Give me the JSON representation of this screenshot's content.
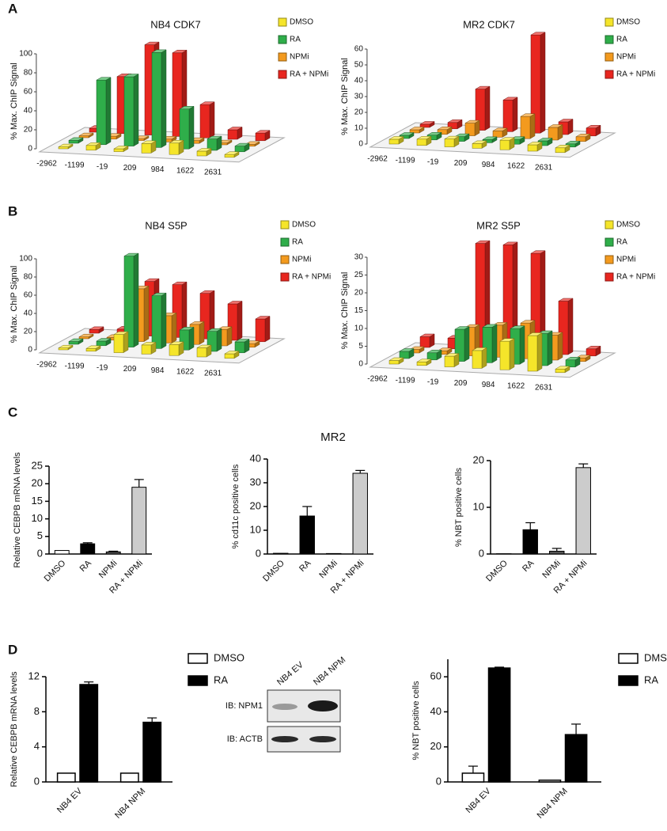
{
  "panels": [
    "A",
    "B",
    "C",
    "D"
  ],
  "group_title": "MR2",
  "blot": {
    "lanes": [
      "NB4 EV",
      "NB4 NPM"
    ],
    "rows": [
      "IB: NPM1",
      "IB: ACTB"
    ]
  },
  "chart_data": [
    {
      "type": "bar3d",
      "title": "NB4 CDK7",
      "y_label": "% Max. ChIP Signal",
      "categories": [
        "-2962",
        "-1199",
        "-19",
        "209",
        "984",
        "1622",
        "2631"
      ],
      "series": [
        {
          "name": "DMSO",
          "color": "#f5e52a",
          "values": [
            2,
            5,
            3,
            10,
            12,
            5,
            3
          ]
        },
        {
          "name": "RA",
          "color": "#2fae4a",
          "values": [
            3,
            68,
            73,
            100,
            42,
            12,
            6
          ]
        },
        {
          "name": "NPMi",
          "color": "#f39a1e",
          "values": [
            2,
            3,
            2,
            3,
            3,
            2,
            2
          ]
        },
        {
          "name": "RA + NPMi",
          "color": "#e8261f",
          "values": [
            4,
            60,
            95,
            88,
            35,
            10,
            8
          ]
        }
      ],
      "ylim": [
        0,
        100
      ],
      "yticks": [
        0,
        20,
        40,
        60,
        80,
        100
      ]
    },
    {
      "type": "bar3d",
      "title": "MR2 CDK7",
      "y_label": "% Max. ChIP Signal",
      "categories": [
        "-2962",
        "-1199",
        "-19",
        "209",
        "984",
        "1622",
        "2631"
      ],
      "series": [
        {
          "name": "DMSO",
          "color": "#f5e52a",
          "values": [
            3,
            4,
            5,
            3,
            6,
            4,
            3
          ]
        },
        {
          "name": "RA",
          "color": "#2fae4a",
          "values": [
            2,
            3,
            3,
            2,
            3,
            3,
            2
          ]
        },
        {
          "name": "NPMi",
          "color": "#f39a1e",
          "values": [
            2,
            3,
            8,
            4,
            14,
            8,
            3
          ]
        },
        {
          "name": "RA + NPMi",
          "color": "#e8261f",
          "values": [
            2,
            4,
            26,
            20,
            62,
            8,
            5
          ]
        }
      ],
      "ylim": [
        0,
        60
      ],
      "yticks": [
        0,
        10,
        20,
        30,
        40,
        50,
        60
      ]
    },
    {
      "type": "bar3d",
      "title": "NB4 S5P",
      "y_label": "% Max. ChIP Signal",
      "categories": [
        "-2962",
        "-1199",
        "-19",
        "209",
        "984",
        "1622",
        "2631"
      ],
      "series": [
        {
          "name": "DMSO",
          "color": "#f5e52a",
          "values": [
            2,
            3,
            20,
            10,
            12,
            10,
            5
          ]
        },
        {
          "name": "RA",
          "color": "#2fae4a",
          "values": [
            3,
            5,
            100,
            58,
            22,
            22,
            12
          ]
        },
        {
          "name": "NPMi",
          "color": "#f39a1e",
          "values": [
            2,
            3,
            58,
            30,
            22,
            18,
            4
          ]
        },
        {
          "name": "RA + NPMi",
          "color": "#e8261f",
          "values": [
            4,
            6,
            60,
            58,
            50,
            40,
            25
          ]
        }
      ],
      "ylim": [
        0,
        100
      ],
      "yticks": [
        0,
        20,
        40,
        60,
        80,
        100
      ]
    },
    {
      "type": "bar3d",
      "title": "MR2 S5P",
      "y_label": "% Max. ChIP Signal",
      "categories": [
        "-2962",
        "-1199",
        "-19",
        "209",
        "984",
        "1622",
        "2631"
      ],
      "series": [
        {
          "name": "DMSO",
          "color": "#f5e52a",
          "values": [
            1,
            1,
            3,
            5,
            8,
            10,
            1
          ]
        },
        {
          "name": "RA",
          "color": "#2fae4a",
          "values": [
            2,
            2,
            9,
            10,
            10,
            9,
            2
          ]
        },
        {
          "name": "NPMi",
          "color": "#f39a1e",
          "values": [
            1,
            1,
            8,
            9,
            10,
            7,
            1
          ]
        },
        {
          "name": "RA + NPMi",
          "color": "#e8261f",
          "values": [
            3,
            3,
            30,
            30,
            28,
            15,
            2
          ]
        }
      ],
      "ylim": [
        0,
        30
      ],
      "yticks": [
        0,
        5,
        10,
        15,
        20,
        25,
        30
      ]
    },
    {
      "type": "bar",
      "y_label": "Relative CEBPB mRNA levels",
      "categories": [
        "DMSO",
        "RA",
        "NPMi",
        "RA + NPMi"
      ],
      "values": [
        1,
        2.9,
        0.6,
        19
      ],
      "errors": [
        0,
        0.3,
        0.2,
        2.2
      ],
      "colors": [
        "#ffffff",
        "#000000",
        "#555555",
        "#cccccc"
      ],
      "ylim": [
        0,
        25
      ],
      "yticks": [
        0,
        5,
        10,
        15,
        20,
        25
      ]
    },
    {
      "type": "bar",
      "y_label": "% cd11c positive cells",
      "categories": [
        "DMSO",
        "RA",
        "NPMi",
        "RA + NPMi"
      ],
      "values": [
        0.3,
        16,
        0.2,
        34
      ],
      "errors": [
        0,
        4,
        0,
        1.2
      ],
      "colors": [
        "#ffffff",
        "#000000",
        "#555555",
        "#cccccc"
      ],
      "ylim": [
        0,
        40
      ],
      "yticks": [
        0,
        10,
        20,
        30,
        40
      ]
    },
    {
      "type": "bar",
      "y_label": "% NBT positive cells",
      "categories": [
        "DMSO",
        "RA",
        "NPMi",
        "RA + NPMi"
      ],
      "values": [
        0.05,
        5.2,
        0.6,
        18.5
      ],
      "errors": [
        0,
        1.5,
        0.6,
        0.8
      ],
      "colors": [
        "#ffffff",
        "#000000",
        "#555555",
        "#cccccc"
      ],
      "ylim": [
        0,
        20
      ],
      "yticks": [
        0,
        10,
        20
      ]
    },
    {
      "type": "grouped_bar",
      "y_label": "Relative CEBPB mRNA levels",
      "categories": [
        "NB4 EV",
        "NB4 NPM"
      ],
      "series": [
        {
          "name": "DMSO",
          "color": "#ffffff",
          "values": [
            1,
            1
          ],
          "errors": [
            0,
            0
          ]
        },
        {
          "name": "RA",
          "color": "#000000",
          "values": [
            11.1,
            6.8
          ],
          "errors": [
            0.3,
            0.5
          ]
        }
      ],
      "ylim": [
        0,
        12
      ],
      "yticks": [
        0,
        4,
        8,
        12
      ],
      "legend": "upper right"
    },
    {
      "type": "grouped_bar",
      "y_label": "% NBT positive cells",
      "categories": [
        "NB4 EV",
        "NB4 NPM"
      ],
      "series": [
        {
          "name": "DMSO",
          "color": "#ffffff",
          "values": [
            5,
            1
          ],
          "errors": [
            4,
            0
          ]
        },
        {
          "name": "RA",
          "color": "#000000",
          "values": [
            65,
            27
          ],
          "errors": [
            0.5,
            6
          ]
        }
      ],
      "ylim": [
        0,
        70
      ],
      "yticks": [
        0,
        20,
        40,
        60
      ],
      "legend": "upper right"
    }
  ]
}
